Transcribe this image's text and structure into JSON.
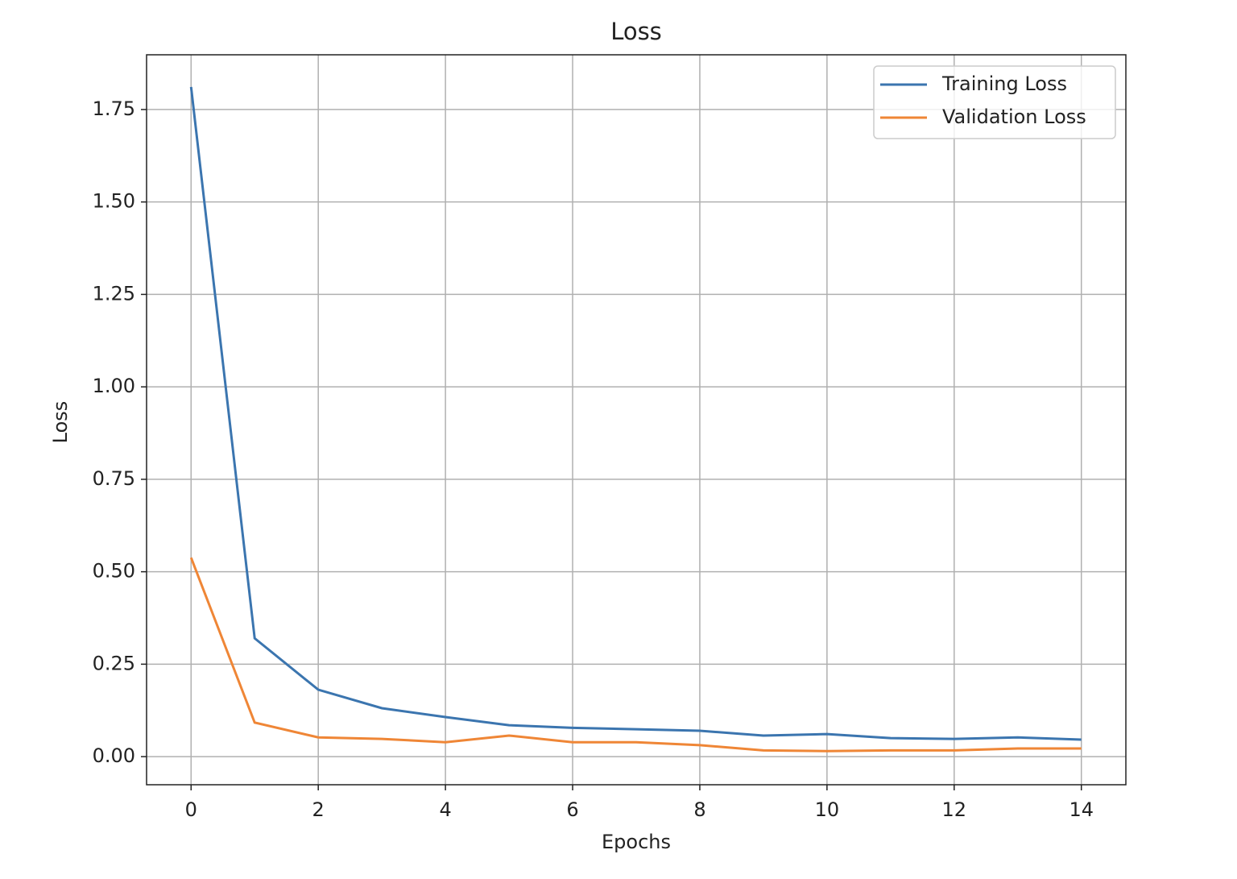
{
  "chart_data": {
    "type": "line",
    "title": "Loss",
    "x_label": "Epochs",
    "y_label": "Loss",
    "x": [
      0,
      1,
      2,
      3,
      4,
      5,
      6,
      7,
      8,
      9,
      10,
      11,
      12,
      13,
      14
    ],
    "series": [
      {
        "name": "Training Loss",
        "color": "#3b75af",
        "values": [
          1.811,
          0.32,
          0.181,
          0.131,
          0.107,
          0.085,
          0.078,
          0.074,
          0.07,
          0.057,
          0.061,
          0.05,
          0.048,
          0.052,
          0.046
        ]
      },
      {
        "name": "Validation Loss",
        "color": "#ef8636",
        "values": [
          0.538,
          0.092,
          0.052,
          0.048,
          0.039,
          0.057,
          0.039,
          0.039,
          0.031,
          0.017,
          0.015,
          0.017,
          0.017,
          0.022,
          0.022
        ]
      }
    ],
    "xlim": [
      -0.7,
      14.7
    ],
    "ylim": [
      -0.076,
      1.898
    ],
    "xticks": [
      0,
      2,
      4,
      6,
      8,
      10,
      12,
      14
    ],
    "yticks": [
      {
        "value": 0,
        "label": "0.00"
      },
      {
        "value": 0.25,
        "label": "0.25"
      },
      {
        "value": 0.5,
        "label": "0.50"
      },
      {
        "value": 0.75,
        "label": "0.75"
      },
      {
        "value": 1,
        "label": "1.00"
      },
      {
        "value": 1.25,
        "label": "1.25"
      },
      {
        "value": 1.5,
        "label": "1.50"
      },
      {
        "value": 1.75,
        "label": "1.75"
      }
    ],
    "grid": true,
    "legend": "upper right"
  }
}
